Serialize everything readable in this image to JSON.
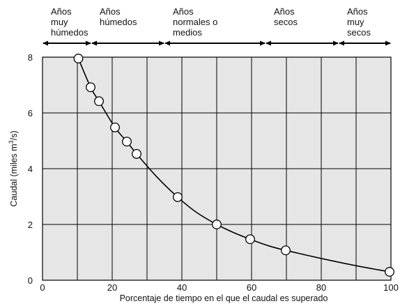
{
  "chart_data": {
    "type": "line",
    "xlabel": "Porcentaje de tiempo en el que el caudal es superado",
    "ylabel_main": "Caudal (miles m",
    "ylabel_sup": "3",
    "ylabel_end": "/s)",
    "xlim": [
      0,
      100
    ],
    "ylim": [
      0,
      8
    ],
    "x_ticks": [
      0,
      20,
      40,
      60,
      80,
      100
    ],
    "y_ticks": [
      0,
      2,
      4,
      6,
      8
    ],
    "grid": true,
    "background_color": "#e6e6e6",
    "line_color": "#000000",
    "series": [
      {
        "x": [
          10.3,
          13.8,
          16.2,
          20.8,
          24.2,
          27.0,
          38.8,
          50.0,
          59.6,
          69.8,
          99.6
        ],
        "y": [
          7.95,
          6.92,
          6.42,
          5.48,
          4.97,
          4.53,
          2.98,
          2.0,
          1.47,
          1.07,
          0.3
        ],
        "marker": "circle"
      }
    ],
    "curve": {
      "x": [
        10.3,
        13.8,
        16.2,
        20.8,
        24.2,
        27.0,
        33.0,
        38.8,
        44.0,
        50.0,
        55.0,
        59.6,
        65.0,
        69.8,
        80.0,
        90.0,
        99.6
      ],
      "y": [
        7.95,
        6.92,
        6.42,
        5.48,
        4.97,
        4.53,
        3.68,
        2.98,
        2.45,
        2.0,
        1.7,
        1.47,
        1.23,
        1.07,
        0.78,
        0.52,
        0.3
      ]
    },
    "bands": [
      {
        "lines": [
          "Años",
          "muy",
          "húmedos"
        ],
        "from": 0,
        "to": 14
      },
      {
        "lines": [
          "Años",
          "húmedos"
        ],
        "from": 14,
        "to": 35
      },
      {
        "lines": [
          "Años",
          "normales o",
          "medios"
        ],
        "from": 35,
        "to": 64
      },
      {
        "lines": [
          "Años",
          "secos"
        ],
        "from": 64,
        "to": 85
      },
      {
        "lines": [
          "Años",
          "muy",
          "secos"
        ],
        "from": 85,
        "to": 100
      }
    ]
  }
}
